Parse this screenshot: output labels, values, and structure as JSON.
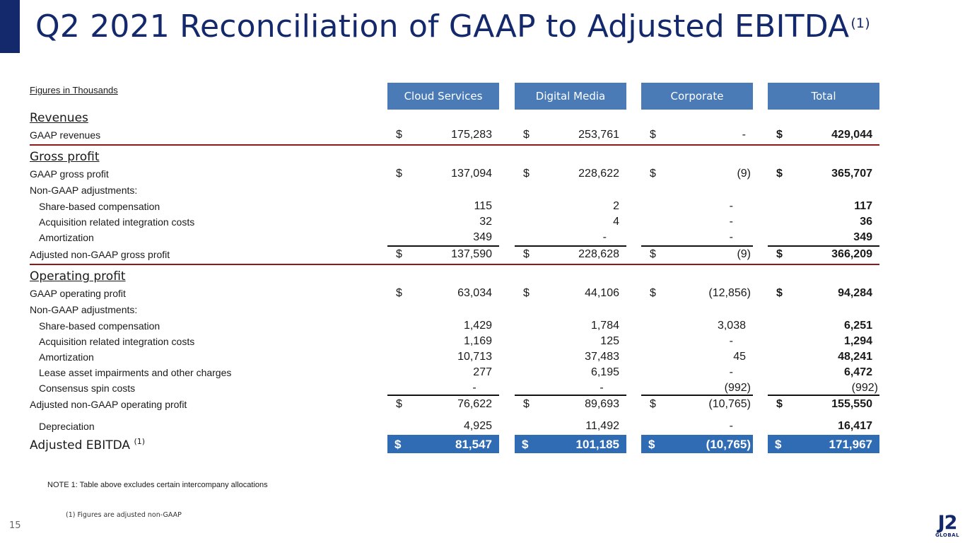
{
  "title": "Q2 2021 Reconciliation of GAAP to Adjusted EBITDA",
  "title_sup": "(1)",
  "units_label": "Figures in Thousands",
  "columns": [
    "Cloud Services",
    "Digital Media",
    "Corporate",
    "Total"
  ],
  "currency": "$",
  "sections": {
    "revenues": "Revenues",
    "gross_profit": "Gross profit",
    "operating_profit": "Operating profit"
  },
  "rows": {
    "gaap_revenues": {
      "label": "GAAP revenues",
      "values": [
        "175,283",
        "253,761",
        "-",
        "429,044"
      ]
    },
    "gaap_gross_profit": {
      "label": "GAAP gross profit",
      "values": [
        "137,094",
        "228,622",
        "(9)",
        "365,707"
      ]
    },
    "gp_non_gaap": {
      "label": "Non-GAAP adjustments:"
    },
    "gp_sbc": {
      "label": "Share-based compensation",
      "values": [
        "115",
        "2",
        "-",
        "117"
      ]
    },
    "gp_acq": {
      "label": "Acquisition related integration costs",
      "values": [
        "32",
        "4",
        "-",
        "36"
      ]
    },
    "gp_amort": {
      "label": "Amortization",
      "values": [
        "349",
        "-",
        "-",
        "349"
      ]
    },
    "adj_gross_profit": {
      "label": "Adjusted non-GAAP gross profit",
      "values": [
        "137,590",
        "228,628",
        "(9)",
        "366,209"
      ]
    },
    "gaap_op_profit": {
      "label": "GAAP operating profit",
      "values": [
        "63,034",
        "44,106",
        "(12,856)",
        "94,284"
      ]
    },
    "op_non_gaap": {
      "label": "Non-GAAP adjustments:"
    },
    "op_sbc": {
      "label": "Share-based compensation",
      "values": [
        "1,429",
        "1,784",
        "3,038",
        "6,251"
      ]
    },
    "op_acq": {
      "label": "Acquisition related integration costs",
      "values": [
        "1,169",
        "125",
        "-",
        "1,294"
      ]
    },
    "op_amort": {
      "label": "Amortization",
      "values": [
        "10,713",
        "37,483",
        "45",
        "48,241"
      ]
    },
    "op_lease": {
      "label": "Lease asset impairments and other charges",
      "values": [
        "277",
        "6,195",
        "-",
        "6,472"
      ]
    },
    "op_spin": {
      "label": "Consensus spin costs",
      "values": [
        "-",
        "-",
        "(992)",
        "(992)"
      ]
    },
    "adj_op_profit": {
      "label": "Adjusted non-GAAP operating profit",
      "values": [
        "76,622",
        "89,693",
        "(10,765)",
        "155,550"
      ]
    },
    "depreciation": {
      "label": "Depreciation",
      "values": [
        "4,925",
        "11,492",
        "-",
        "16,417"
      ]
    }
  },
  "ebitda": {
    "label": "Adjusted EBITDA",
    "sup": "(1)",
    "values": [
      "81,547",
      "101,185",
      "(10,765)",
      "171,967"
    ]
  },
  "note": "NOTE 1: Table above excludes certain intercompany allocations",
  "footnote": "(1)   Figures are adjusted non-GAAP",
  "page_number": "15",
  "logo": {
    "main": "J2",
    "sub": "GLOBAL"
  }
}
